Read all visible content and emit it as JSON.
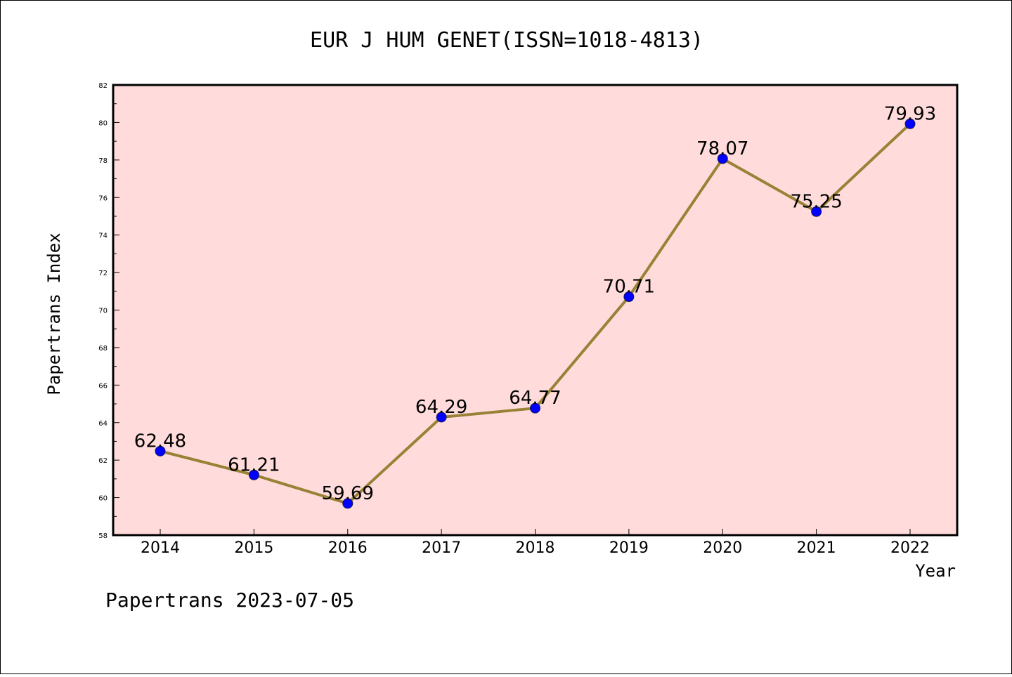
{
  "footer": "Papertrans 2023-07-05",
  "colors": {
    "plot_background": "#ffdcdb",
    "line": "#998136",
    "marker": "#0000ff",
    "marker_edge": "#1a1a5a"
  },
  "chart_data": {
    "type": "line",
    "title": "EUR J HUM GENET(ISSN=1018-4813)",
    "xlabel": "Year",
    "ylabel": "Papertrans Index",
    "categories": [
      "2014",
      "2015",
      "2016",
      "2017",
      "2018",
      "2019",
      "2020",
      "2021",
      "2022"
    ],
    "series": [
      {
        "values": [
          62.48,
          61.21,
          59.69,
          64.29,
          64.77,
          70.71,
          78.07,
          75.25,
          79.93
        ],
        "labels": [
          "62.48",
          "61.21",
          "59.69",
          "64.29",
          "64.77",
          "70.71",
          "78.07",
          "75.25",
          "79.93"
        ]
      }
    ],
    "ylim": [
      58,
      82
    ],
    "yticks": [
      "58",
      "60",
      "62",
      "64",
      "66",
      "68",
      "70",
      "72",
      "74",
      "76",
      "78",
      "80",
      "82"
    ],
    "grid": false,
    "legend": "none"
  }
}
